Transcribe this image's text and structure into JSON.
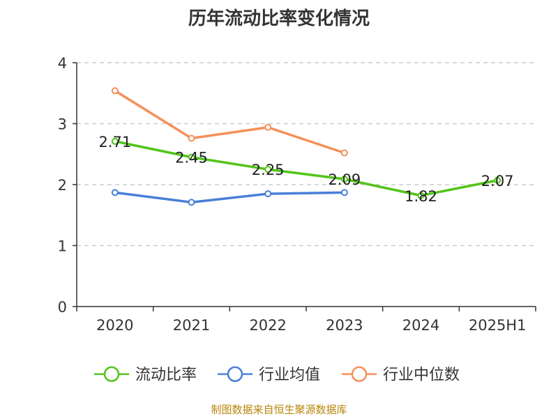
{
  "title": "历年流动比率变化情况",
  "source_note": "制图数据来自恒生聚源数据库",
  "colors": {
    "current_ratio": "#52c41a",
    "industry_avg": "#4a7fd8",
    "industry_median": "#f5905a",
    "grid": "#cccccc",
    "axis": "#333333",
    "source": "#b8860b"
  },
  "chart_data": {
    "type": "line",
    "title": "历年流动比率变化情况",
    "categories": [
      "2020",
      "2021",
      "2022",
      "2023",
      "2024",
      "2025H1"
    ],
    "ylim": [
      0,
      4
    ],
    "yticks": [
      0,
      1,
      2,
      3,
      4
    ],
    "grid": true,
    "legend_position": "bottom-center",
    "series": [
      {
        "name": "流动比率",
        "color": "#52c41a",
        "values": [
          2.71,
          2.45,
          2.25,
          2.09,
          1.82,
          2.07
        ],
        "data_labels": [
          "2.71",
          "2.45",
          "2.25",
          "2.09",
          "1.82",
          "2.07"
        ]
      },
      {
        "name": "行业均值",
        "color": "#4a7fd8",
        "values": [
          1.87,
          1.71,
          1.85,
          1.87,
          null,
          null
        ]
      },
      {
        "name": "行业中位数",
        "color": "#f5905a",
        "values": [
          3.54,
          2.76,
          2.94,
          2.52,
          null,
          null
        ]
      }
    ]
  }
}
